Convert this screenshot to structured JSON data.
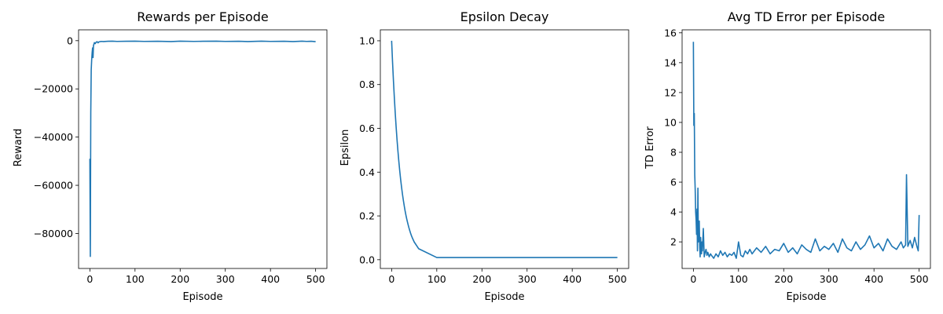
{
  "figure": {
    "line_color": "#1f77b4",
    "background": "#ffffff"
  },
  "chart_data": [
    {
      "type": "line",
      "title": "Rewards per Episode",
      "xlabel": "Episode",
      "ylabel": "Reward",
      "xlim": [
        -25,
        525
      ],
      "ylim": [
        -94500,
        4500
      ],
      "xticks": [
        0,
        100,
        200,
        300,
        400,
        500
      ],
      "xtick_labels": [
        "0",
        "100",
        "200",
        "300",
        "400",
        "500"
      ],
      "yticks": [
        0,
        -20000,
        -40000,
        -60000,
        -80000
      ],
      "ytick_labels": [
        "0",
        "−20000",
        "−40000",
        "−60000",
        "−80000"
      ],
      "grid": false,
      "series": [
        {
          "x": [
            0,
            1,
            2,
            3,
            4,
            5,
            6,
            7,
            8,
            9,
            10,
            12,
            14,
            16,
            18,
            20,
            25,
            30,
            40,
            50,
            60,
            80,
            100,
            120,
            150,
            180,
            200,
            230,
            250,
            280,
            300,
            330,
            350,
            380,
            400,
            430,
            450,
            470,
            480,
            490,
            500
          ],
          "y": [
            -49000,
            -89500,
            -30000,
            -12000,
            -8000,
            -5000,
            -3000,
            -7000,
            -2000,
            -1500,
            -800,
            -1200,
            -600,
            -400,
            -900,
            -500,
            -300,
            -350,
            -250,
            -200,
            -300,
            -250,
            -200,
            -300,
            -250,
            -350,
            -200,
            -300,
            -250,
            -200,
            -300,
            -250,
            -350,
            -200,
            -300,
            -250,
            -350,
            -200,
            -300,
            -250,
            -400
          ]
        }
      ]
    },
    {
      "type": "line",
      "title": "Epsilon Decay",
      "xlabel": "Episode",
      "ylabel": "Epsilon",
      "xlim": [
        -25,
        525
      ],
      "ylim": [
        -0.04,
        1.05
      ],
      "xticks": [
        0,
        100,
        200,
        300,
        400,
        500
      ],
      "xtick_labels": [
        "0",
        "100",
        "200",
        "300",
        "400",
        "500"
      ],
      "yticks": [
        0.0,
        0.2,
        0.4,
        0.6,
        0.8,
        1.0
      ],
      "ytick_labels": [
        "0.0",
        "0.2",
        "0.4",
        "0.6",
        "0.8",
        "1.0"
      ],
      "grid": false,
      "series": [
        {
          "x": [
            0,
            2,
            4,
            6,
            8,
            10,
            12,
            14,
            16,
            18,
            20,
            22,
            24,
            26,
            28,
            30,
            32,
            34,
            36,
            38,
            40,
            42,
            44,
            46,
            50,
            60,
            100,
            200,
            300,
            400,
            500
          ],
          "y": [
            1.0,
            0.904,
            0.818,
            0.74,
            0.669,
            0.605,
            0.547,
            0.495,
            0.448,
            0.405,
            0.366,
            0.331,
            0.299,
            0.271,
            0.245,
            0.221,
            0.2,
            0.181,
            0.164,
            0.148,
            0.134,
            0.121,
            0.109,
            0.099,
            0.081,
            0.05,
            0.01,
            0.01,
            0.01,
            0.01,
            0.01
          ]
        }
      ]
    },
    {
      "type": "line",
      "title": "Avg TD Error per Episode",
      "xlabel": "Episode",
      "ylabel": "TD Error",
      "xlim": [
        -25,
        525
      ],
      "ylim": [
        0.22,
        16.2
      ],
      "xticks": [
        0,
        100,
        200,
        300,
        400,
        500
      ],
      "xtick_labels": [
        "0",
        "100",
        "200",
        "300",
        "400",
        "500"
      ],
      "yticks": [
        2,
        4,
        6,
        8,
        10,
        12,
        14,
        16
      ],
      "ytick_labels": [
        "2",
        "4",
        "6",
        "8",
        "10",
        "12",
        "14",
        "16"
      ],
      "grid": false,
      "series": [
        {
          "x": [
            0,
            1,
            2,
            3,
            4,
            5,
            6,
            7,
            8,
            9,
            10,
            11,
            12,
            13,
            14,
            15,
            16,
            17,
            18,
            19,
            20,
            22,
            24,
            26,
            28,
            30,
            32,
            35,
            38,
            40,
            45,
            50,
            55,
            60,
            65,
            70,
            75,
            80,
            85,
            90,
            95,
            100,
            105,
            110,
            115,
            120,
            125,
            130,
            140,
            150,
            160,
            170,
            180,
            190,
            200,
            210,
            220,
            230,
            240,
            250,
            260,
            270,
            280,
            290,
            300,
            310,
            320,
            330,
            340,
            350,
            360,
            370,
            380,
            390,
            400,
            410,
            420,
            430,
            440,
            450,
            460,
            465,
            470,
            472,
            475,
            480,
            485,
            490,
            495,
            498,
            500
          ],
          "y": [
            15.4,
            9.8,
            10.6,
            6.5,
            5.5,
            4.0,
            3.5,
            2.5,
            4.2,
            1.4,
            5.6,
            2.0,
            2.7,
            3.4,
            1.6,
            1.0,
            2.3,
            1.5,
            1.2,
            2.0,
            1.4,
            2.9,
            1.0,
            1.3,
            1.5,
            1.1,
            1.3,
            1.0,
            1.2,
            1.1,
            0.9,
            1.2,
            1.0,
            1.4,
            1.1,
            1.3,
            1.0,
            1.2,
            1.1,
            1.3,
            0.9,
            2.0,
            1.1,
            1.0,
            1.4,
            1.2,
            1.5,
            1.2,
            1.6,
            1.3,
            1.7,
            1.2,
            1.5,
            1.4,
            1.9,
            1.3,
            1.6,
            1.2,
            1.8,
            1.5,
            1.3,
            2.2,
            1.4,
            1.7,
            1.5,
            1.9,
            1.3,
            2.2,
            1.6,
            1.4,
            2.0,
            1.5,
            1.8,
            2.4,
            1.6,
            1.9,
            1.4,
            2.2,
            1.7,
            1.5,
            2.0,
            1.6,
            1.8,
            6.5,
            1.7,
            2.1,
            1.6,
            2.3,
            1.7,
            1.4,
            3.8
          ]
        }
      ]
    }
  ]
}
